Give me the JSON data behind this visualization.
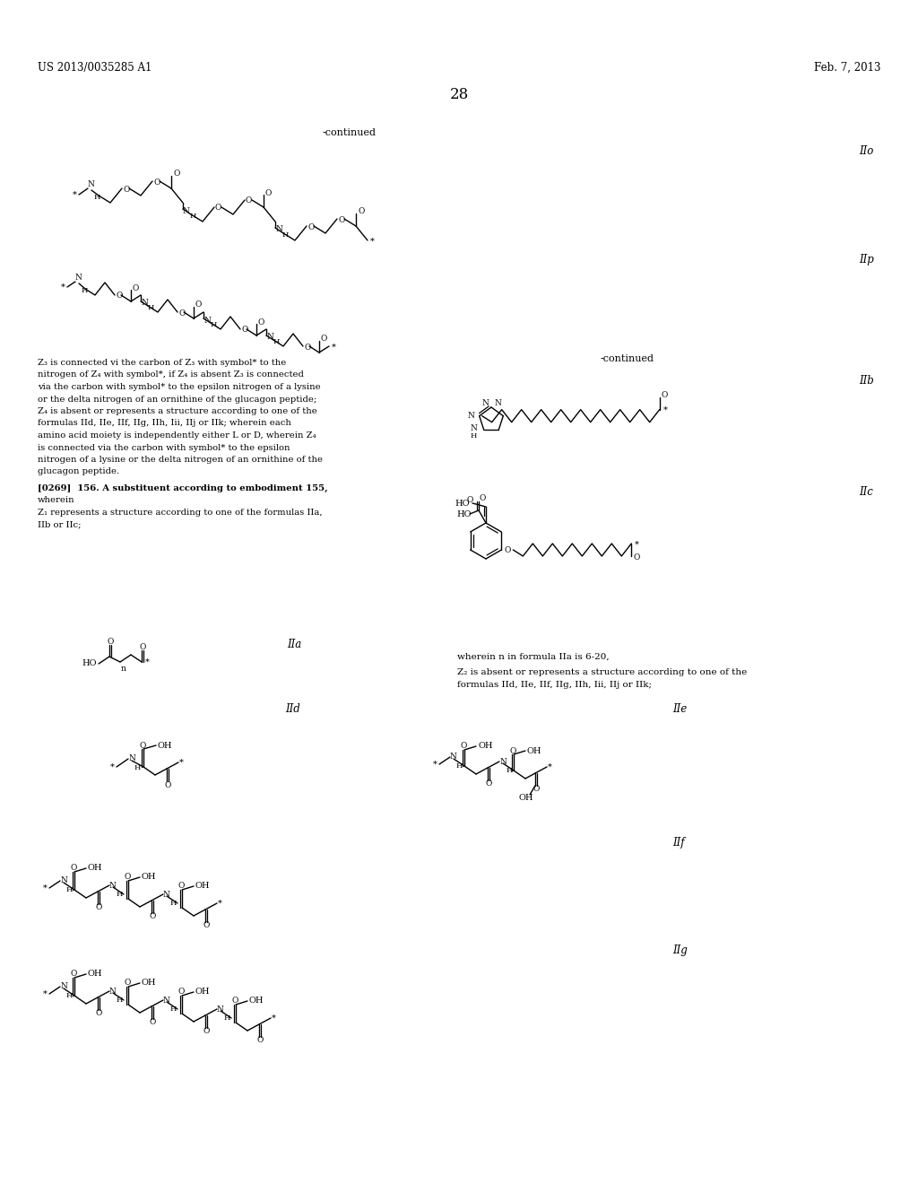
{
  "bg_color": "#ffffff",
  "header_left": "US 2013/0035285 A1",
  "header_right": "Feb. 7, 2013",
  "page_number": "28",
  "serif": "DejaVu Serif"
}
